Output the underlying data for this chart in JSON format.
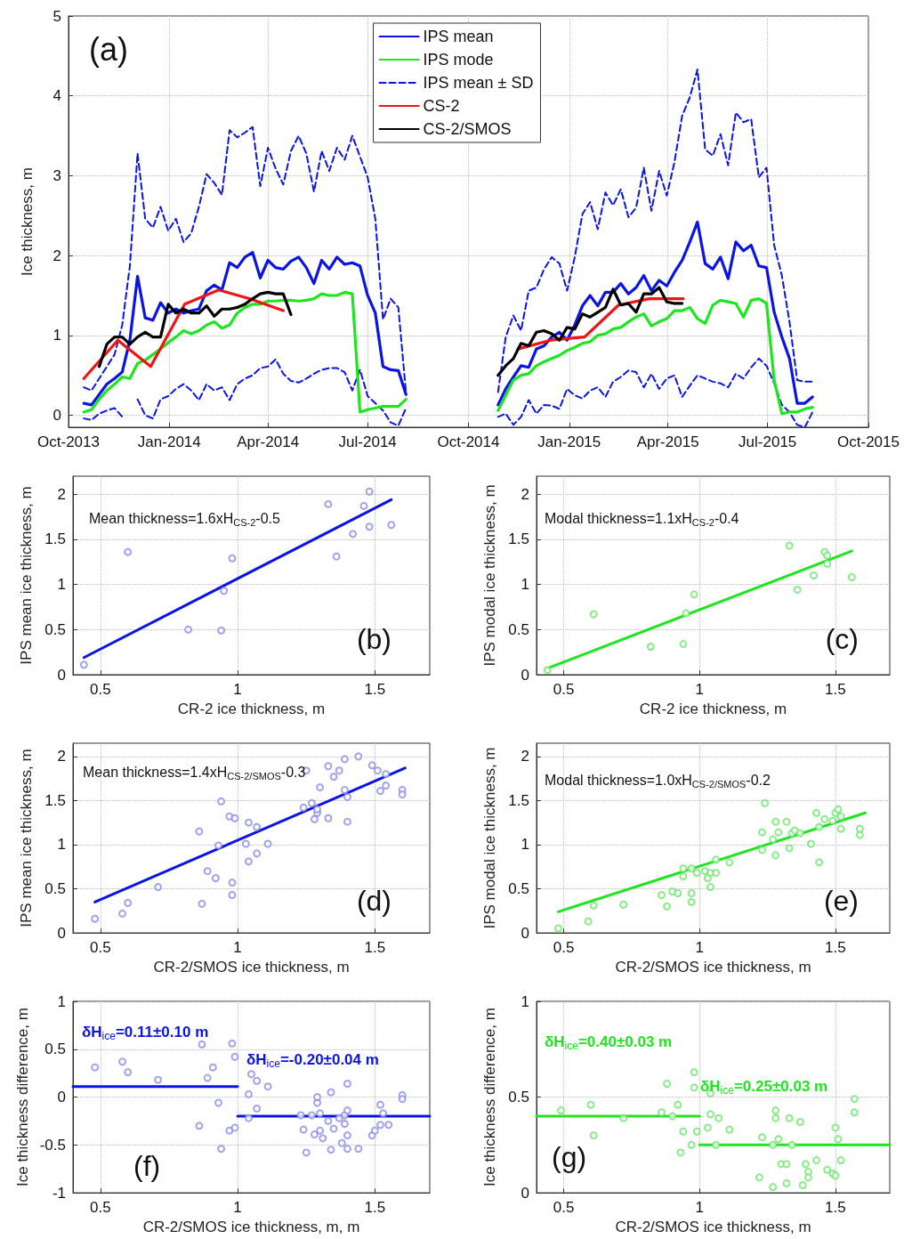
{
  "chart_data": [
    {
      "type": "line",
      "ylabel": "Ice thickness, m",
      "annotations": [
        "(a)"
      ],
      "xlim": [
        "2013-10-01",
        "2015-10-01"
      ],
      "xticks": [
        {
          "value": "2013-10-01",
          "label": "Oct-2013"
        },
        {
          "value": "2014-01-01",
          "label": "Jan-2014"
        },
        {
          "value": "2014-04-01",
          "label": "Apr-2014"
        },
        {
          "value": "2014-07-01",
          "label": "Jul-2014"
        },
        {
          "value": "2014-10-01",
          "label": "Oct-2014"
        },
        {
          "value": "2015-01-01",
          "label": "Jan-2015"
        },
        {
          "value": "2015-04-01",
          "label": "Apr-2015"
        },
        {
          "value": "2015-07-01",
          "label": "Jul-2015"
        },
        {
          "value": "2015-10-01",
          "label": "Oct-2015"
        }
      ],
      "ylim": [
        -0.15,
        5
      ],
      "yticks": [
        0,
        1,
        2,
        3,
        4,
        5
      ],
      "grid": true,
      "legend": "top",
      "marker": "none",
      "x": [
        "2013-10-15",
        "2013-10-22",
        "2013-10-29",
        "2013-11-05",
        "2013-11-12",
        "2013-11-19",
        "2013-11-26",
        "2013-12-03",
        "2013-12-10",
        "2013-12-17",
        "2013-12-24",
        "2013-12-31",
        "2014-01-07",
        "2014-01-14",
        "2014-01-21",
        "2014-01-28",
        "2014-02-04",
        "2014-02-11",
        "2014-02-18",
        "2014-02-25",
        "2014-03-04",
        "2014-03-11",
        "2014-03-18",
        "2014-03-25",
        "2014-04-01",
        "2014-04-08",
        "2014-04-15",
        "2014-04-22",
        "2014-04-29",
        "2014-05-06",
        "2014-05-13",
        "2014-05-20",
        "2014-05-27",
        "2014-06-03",
        "2014-06-10",
        "2014-06-17",
        "2014-06-24",
        "2014-07-01",
        "2014-07-08",
        "2014-07-15",
        "2014-07-22",
        "2014-07-29",
        "2014-08-05",
        "2014-09-15",
        "2014-10-28",
        "2014-11-04",
        "2014-11-11",
        "2014-11-18",
        "2014-11-25",
        "2014-12-02",
        "2014-12-09",
        "2014-12-16",
        "2014-12-23",
        "2014-12-30",
        "2015-01-06",
        "2015-01-13",
        "2015-01-20",
        "2015-01-27",
        "2015-02-03",
        "2015-02-10",
        "2015-02-17",
        "2015-02-24",
        "2015-03-03",
        "2015-03-10",
        "2015-03-17",
        "2015-03-24",
        "2015-03-31",
        "2015-04-07",
        "2015-04-14",
        "2015-04-21",
        "2015-04-28",
        "2015-05-05",
        "2015-05-12",
        "2015-05-19",
        "2015-05-26",
        "2015-06-02",
        "2015-06-09",
        "2015-06-16",
        "2015-06-23",
        "2015-06-30",
        "2015-07-07",
        "2015-07-14",
        "2015-07-21",
        "2015-07-28",
        "2015-08-04",
        "2015-08-11"
      ],
      "series": [
        {
          "name": "IPS mean",
          "color": "#0a14e6",
          "values": [
            0.15,
            0.13,
            0.26,
            0.39,
            0.46,
            0.54,
            0.94,
            1.74,
            1.22,
            1.19,
            1.41,
            1.28,
            1.33,
            1.28,
            1.31,
            1.33,
            1.56,
            1.63,
            1.57,
            1.91,
            1.85,
            1.98,
            2.04,
            1.72,
            1.94,
            1.85,
            1.83,
            1.93,
            1.98,
            1.85,
            1.65,
            1.94,
            1.83,
            1.98,
            1.89,
            1.91,
            1.87,
            1.5,
            1.28,
            0.61,
            0.57,
            0.56,
            0.26,
            null,
            0.13,
            0.33,
            0.48,
            0.62,
            0.6,
            0.83,
            0.87,
            0.98,
            1.04,
            0.94,
            1.13,
            1.37,
            1.5,
            1.37,
            1.54,
            1.54,
            1.65,
            1.52,
            1.6,
            1.75,
            1.56,
            1.69,
            1.62,
            1.79,
            1.94,
            2.17,
            2.42,
            1.9,
            1.83,
            1.98,
            1.71,
            2.17,
            2.06,
            2.13,
            1.87,
            1.85,
            1.29,
            0.98,
            0.71,
            0.15,
            0.15,
            0.23
          ]
        },
        {
          "name": "IPS mode",
          "color": "#1ee61e",
          "values": [
            0.04,
            0.07,
            0.2,
            0.31,
            0.39,
            0.48,
            0.46,
            0.65,
            0.69,
            0.76,
            0.83,
            0.91,
            0.98,
            1.06,
            1.02,
            1.06,
            1.13,
            1.17,
            1.09,
            1.13,
            1.28,
            1.35,
            1.39,
            1.39,
            1.43,
            1.43,
            1.44,
            1.44,
            1.43,
            1.44,
            1.46,
            1.52,
            1.5,
            1.5,
            1.54,
            1.52,
            0.04,
            0.07,
            0.09,
            0.11,
            0.11,
            0.11,
            0.2,
            null,
            0.06,
            0.25,
            0.44,
            0.5,
            0.52,
            0.62,
            0.67,
            0.71,
            0.75,
            0.81,
            0.85,
            0.9,
            0.92,
            1.0,
            1.02,
            1.08,
            1.1,
            1.17,
            1.23,
            1.27,
            1.12,
            1.17,
            1.21,
            1.31,
            1.31,
            1.35,
            1.21,
            1.15,
            1.38,
            1.44,
            1.42,
            1.4,
            1.23,
            1.44,
            1.46,
            1.4,
            0.44,
            0.02,
            0.04,
            0.04,
            0.08,
            0.1
          ]
        },
        {
          "name": "IPS mean ± SD",
          "color": "#0a14e6",
          "line_style": "dashed",
          "values": [
            0.35,
            0.31,
            0.46,
            0.61,
            0.76,
            1.13,
            1.87,
            3.28,
            2.46,
            2.35,
            2.61,
            2.31,
            2.46,
            2.17,
            2.28,
            2.61,
            3.02,
            2.91,
            2.76,
            3.57,
            3.48,
            3.54,
            3.61,
            2.87,
            3.35,
            3.09,
            2.89,
            3.31,
            3.5,
            3.28,
            2.8,
            3.31,
            3.06,
            3.35,
            3.2,
            3.5,
            3.24,
            2.98,
            2.46,
            1.2,
            1.46,
            1.35,
            0.28,
            null,
            0.29,
            0.98,
            1.25,
            1.06,
            1.56,
            1.6,
            1.83,
            1.98,
            1.9,
            1.56,
            1.98,
            2.52,
            2.67,
            2.33,
            2.79,
            2.63,
            2.83,
            2.48,
            2.6,
            3.1,
            2.56,
            3.06,
            2.75,
            3.17,
            3.75,
            3.98,
            4.33,
            3.33,
            3.25,
            3.52,
            3.13,
            3.79,
            3.67,
            3.71,
            2.98,
            3.1,
            2.13,
            1.75,
            1.17,
            0.44,
            0.42,
            0.42
          ]
        },
        {
          "color": "#0a14e6",
          "line_style": "dashed",
          "values": [
            -0.04,
            -0.06,
            0.02,
            0.06,
            0.09,
            -0.02,
            null,
            0.2,
            0,
            -0.04,
            0.2,
            0.24,
            0.33,
            0.39,
            0.31,
            0.19,
            0.39,
            0.31,
            0.35,
            0.19,
            0.39,
            0.46,
            0.5,
            0.59,
            0.61,
            0.7,
            0.52,
            0.43,
            0.41,
            0.46,
            0.52,
            0.57,
            0.59,
            0.59,
            0.54,
            0.31,
            0.57,
            0.24,
            0.15,
            0.06,
            -0.09,
            -0.13,
            0.09,
            null,
            -0.02,
            0.02,
            -0.12,
            -0.02,
            0.19,
            0.02,
            0.13,
            0.12,
            0.08,
            0.33,
            0.25,
            0.21,
            0.31,
            0.35,
            0.23,
            0.42,
            0.48,
            0.56,
            0.54,
            0.35,
            0.52,
            0.33,
            0.46,
            0.5,
            0.23,
            0.37,
            0.5,
            0.46,
            0.42,
            0.4,
            0.35,
            0.52,
            0.46,
            0.6,
            0.71,
            0.62,
            0.4,
            0.13,
            0.04,
            -0.12,
            -0.15,
            0.04
          ]
        },
        {
          "name": "CS-2",
          "color": "#f01414",
          "x": [
            "2013-10-15",
            "2013-11-15",
            "2013-12-15",
            "2014-01-15",
            "2014-02-15",
            "2014-03-15",
            "2014-04-15",
            "2014-09-15",
            "2014-11-15",
            "2014-12-15",
            "2015-01-15",
            "2015-02-15",
            "2015-03-15",
            "2015-04-15"
          ],
          "values": [
            0.46,
            0.94,
            0.61,
            1.39,
            1.57,
            1.46,
            1.31,
            null,
            0.83,
            0.94,
            0.98,
            1.38,
            1.46,
            1.46
          ]
        },
        {
          "name": "CS-2/SMOS",
          "color": "#000000",
          "values": [
            null,
            null,
            0.61,
            0.89,
            0.98,
            0.98,
            0.89,
            0.98,
            1.04,
            0.98,
            0.98,
            1.39,
            1.28,
            1.33,
            1.28,
            1.28,
            1.37,
            1.24,
            1.33,
            1.33,
            1.35,
            1.39,
            1.46,
            1.52,
            1.54,
            1.52,
            1.52,
            1.26,
            null,
            null,
            null,
            null,
            null,
            null,
            null,
            null,
            null,
            null,
            null,
            null,
            null,
            null,
            null,
            null,
            0.5,
            0.62,
            0.71,
            0.9,
            0.87,
            1.04,
            1.06,
            1.02,
            0.94,
            1.1,
            1.08,
            1.27,
            1.23,
            1.29,
            1.35,
            1.58,
            1.38,
            1.4,
            1.29,
            1.52,
            1.52,
            1.6,
            1.42,
            1.4,
            1.4,
            null,
            null,
            null,
            null,
            null,
            null,
            null,
            null,
            null,
            null,
            null,
            null,
            null,
            null,
            null,
            null,
            null
          ]
        }
      ]
    },
    {
      "type": "scatter",
      "xlabel": "CR-2 ice thickness, m",
      "ylabel": "IPS mean ice thickness, m",
      "annotations": [
        "Mean thickness=1.6xH$_{CS-2}$-0.5",
        "(b)"
      ],
      "xlim": [
        0.4,
        1.7
      ],
      "xticks": [
        0.5,
        1,
        1.5
      ],
      "ylim": [
        0,
        2.2
      ],
      "yticks": [
        0,
        0.5,
        1,
        1.5,
        2
      ],
      "grid": true,
      "series": [
        {
          "color": "#8c8ce6",
          "marker": "circle",
          "x": [
            0.44,
            0.6,
            0.82,
            0.95,
            0.94,
            0.98,
            1.33,
            1.36,
            1.42,
            1.46,
            1.48,
            1.48,
            1.56
          ],
          "values": [
            0.11,
            1.36,
            0.5,
            0.93,
            0.49,
            1.29,
            1.89,
            1.31,
            1.56,
            1.87,
            2.03,
            1.64,
            1.66
          ]
        },
        {
          "type": "line",
          "color": "#0a14e6",
          "x": [
            0.44,
            1.56
          ],
          "values": [
            0.19,
            1.94
          ]
        }
      ]
    },
    {
      "type": "scatter",
      "xlabel": "CR-2 ice thickness, m",
      "ylabel": "IPS modal ice thickness, m",
      "annotations": [
        "Modal thickness=1.1xH$_{CS-2}$-0.4",
        "(c)"
      ],
      "xlim": [
        0.4,
        1.7
      ],
      "xticks": [
        0.5,
        1,
        1.5
      ],
      "ylim": [
        0,
        2.2
      ],
      "yticks": [
        0,
        0.5,
        1,
        1.5,
        2
      ],
      "grid": true,
      "series": [
        {
          "color": "#6ee66e",
          "marker": "circle",
          "x": [
            0.44,
            0.61,
            0.82,
            0.94,
            0.95,
            0.98,
            1.33,
            1.36,
            1.42,
            1.46,
            1.47,
            1.47,
            1.56
          ],
          "values": [
            0.05,
            0.67,
            0.31,
            0.34,
            0.68,
            0.89,
            1.43,
            0.94,
            1.1,
            1.36,
            1.32,
            1.23,
            1.08
          ]
        },
        {
          "type": "line",
          "color": "#1ee61e",
          "x": [
            0.44,
            1.56
          ],
          "values": [
            0.07,
            1.37
          ]
        }
      ]
    },
    {
      "type": "scatter",
      "xlabel": "CR-2/SMOS ice thickness, m",
      "ylabel": "IPS mean ice thickness, m",
      "annotations": [
        "Mean thickness=1.4xH$_{CS-2/SMOS}$-0.3",
        "(d)"
      ],
      "xlim": [
        0.4,
        1.7
      ],
      "xticks": [
        0.5,
        1,
        1.5
      ],
      "ylim": [
        0,
        2.15
      ],
      "yticks": [
        0,
        0.5,
        1,
        1.5,
        2
      ],
      "grid": true,
      "series": [
        {
          "color": "#8c8ce6",
          "marker": "circle",
          "x": [
            0.48,
            0.58,
            0.6,
            0.71,
            0.86,
            0.87,
            0.89,
            0.92,
            0.93,
            0.94,
            0.97,
            0.98,
            0.98,
            0.99,
            1.03,
            1.04,
            1.04,
            1.07,
            1.07,
            1.11,
            1.24,
            1.25,
            1.27,
            1.28,
            1.29,
            1.29,
            1.3,
            1.33,
            1.33,
            1.35,
            1.37,
            1.39,
            1.39,
            1.4,
            1.4,
            1.44,
            1.49,
            1.51,
            1.52,
            1.54,
            1.54,
            1.6,
            1.6
          ],
          "values": [
            0.16,
            0.22,
            0.34,
            0.52,
            1.15,
            0.33,
            0.7,
            0.62,
            0.99,
            1.49,
            1.32,
            0.43,
            0.57,
            1.3,
            1.01,
            1.25,
            0.81,
            1.2,
            0.9,
            1.01,
            1.42,
            1.84,
            1.47,
            1.29,
            1.36,
            1.4,
            1.65,
            1.89,
            1.3,
            1.77,
            1.84,
            1.62,
            1.97,
            1.26,
            1.54,
            2.0,
            1.9,
            1.84,
            1.61,
            1.8,
            1.67,
            1.62,
            1.57
          ]
        },
        {
          "type": "line",
          "color": "#0a14e6",
          "x": [
            0.48,
            1.61
          ],
          "values": [
            0.35,
            1.87
          ]
        }
      ]
    },
    {
      "type": "scatter",
      "xlabel": "CR-2/SMOS ice thickness, m",
      "ylabel": "IPS modal ice thickness, m",
      "annotations": [
        "Modal thickness=1.0xH$_{CS-2/SMOS}$-0.2",
        "(e)"
      ],
      "xlim": [
        0.4,
        1.7
      ],
      "xticks": [
        0.5,
        1,
        1.5
      ],
      "ylim": [
        0,
        2.15
      ],
      "yticks": [
        0,
        0.5,
        1,
        1.5,
        2
      ],
      "grid": true,
      "series": [
        {
          "color": "#6ee66e",
          "marker": "circle",
          "x": [
            0.48,
            0.59,
            0.61,
            0.72,
            0.86,
            0.88,
            0.9,
            0.92,
            0.94,
            0.94,
            0.97,
            0.97,
            0.97,
            0.99,
            1.02,
            1.03,
            1.04,
            1.04,
            1.06,
            1.06,
            1.11,
            1.23,
            1.24,
            1.23,
            1.27,
            1.28,
            1.28,
            1.29,
            1.32,
            1.33,
            1.34,
            1.35,
            1.37,
            1.41,
            1.43,
            1.44,
            1.44,
            1.46,
            1.49,
            1.5,
            1.51,
            1.52,
            1.52,
            1.59,
            1.59
          ],
          "values": [
            0.05,
            0.13,
            0.31,
            0.32,
            0.43,
            0.3,
            0.47,
            0.45,
            0.73,
            0.64,
            0.73,
            0.35,
            0.45,
            0.68,
            0.7,
            0.62,
            0.52,
            0.68,
            0.83,
            0.68,
            0.8,
            0.94,
            1.47,
            1.14,
            1.06,
            0.88,
            1.26,
            1.14,
            1.26,
            0.96,
            1.13,
            1.16,
            1.13,
            1.01,
            1.36,
            0.8,
            1.2,
            1.29,
            1.27,
            1.36,
            1.4,
            1.18,
            1.32,
            1.11,
            1.18
          ]
        },
        {
          "type": "line",
          "color": "#1ee61e",
          "x": [
            0.48,
            1.61
          ],
          "values": [
            0.24,
            1.36
          ]
        }
      ]
    },
    {
      "type": "scatter",
      "xlabel": "CR-2/SMOS ice thickness, m, m",
      "ylabel": "Ice thickness difference, m",
      "annotations": [
        "δH$_{ice}$=0.11±0.10 m",
        "δH$_{ice}$=-0.20±0.04 m",
        "(f)"
      ],
      "xlim": [
        0.4,
        1.7
      ],
      "xticks": [
        0.5,
        1,
        1.5
      ],
      "ylim": [
        -1,
        1
      ],
      "yticks": [
        -1,
        -0.5,
        0,
        0.5,
        1
      ],
      "grid": true,
      "series": [
        {
          "color": "#8c8ce6",
          "marker": "circle",
          "x": [
            0.48,
            0.58,
            0.6,
            0.71,
            0.86,
            0.87,
            0.89,
            0.91,
            0.93,
            0.94,
            0.97,
            0.98,
            0.99,
            0.99,
            1.04,
            1.04,
            1.05,
            1.07,
            1.07,
            1.11,
            1.23,
            1.24,
            1.25,
            1.27,
            1.28,
            1.29,
            1.29,
            1.3,
            1.3,
            1.31,
            1.33,
            1.34,
            1.34,
            1.35,
            1.37,
            1.38,
            1.39,
            1.39,
            1.4,
            1.4,
            1.4,
            1.4,
            1.44,
            1.49,
            1.5,
            1.52,
            1.52,
            1.53,
            1.55,
            1.6,
            1.6
          ],
          "values": [
            0.31,
            0.37,
            0.26,
            0.18,
            -0.3,
            0.55,
            0.2,
            0.31,
            -0.06,
            -0.54,
            -0.35,
            0.56,
            0.42,
            -0.32,
            0.03,
            -0.22,
            0.24,
            0.17,
            -0.12,
            0.11,
            -0.19,
            -0.34,
            -0.58,
            -0.19,
            -0.39,
            -0.06,
            0.0,
            -0.17,
            -0.35,
            -0.43,
            -0.25,
            -0.55,
            0.05,
            -0.33,
            -0.22,
            -0.48,
            -0.19,
            -0.28,
            -0.54,
            0.14,
            -0.4,
            -0.14,
            -0.54,
            -0.4,
            -0.35,
            -0.08,
            -0.29,
            -0.17,
            -0.29,
            0.02,
            -0.02
          ]
        },
        {
          "type": "line",
          "color": "#0a14e6",
          "x": [
            0.4,
            1
          ],
          "values": [
            0.11,
            0.11
          ]
        },
        {
          "type": "line",
          "color": "#0a14e6",
          "x": [
            1,
            1.7
          ],
          "values": [
            -0.2,
            -0.2
          ]
        }
      ]
    },
    {
      "type": "scatter",
      "xlabel": "CR-2/SMOS ice thickness, m",
      "ylabel": "Ice thickness difference, m",
      "annotations": [
        "δH$_{ice}$=0.40±0.03 m",
        "δH$_{ice}$=0.25±0.03 m",
        "(g)"
      ],
      "xlim": [
        0.4,
        1.7
      ],
      "xticks": [
        0.5,
        1,
        1.5
      ],
      "ylim": [
        0,
        1
      ],
      "yticks": [
        0,
        0.5,
        1
      ],
      "grid": true,
      "series": [
        {
          "color": "#6ee66e",
          "marker": "circle",
          "x": [
            0.49,
            0.6,
            0.61,
            0.72,
            0.86,
            0.88,
            0.9,
            0.92,
            0.93,
            0.94,
            0.97,
            0.98,
            0.98,
            0.99,
            1.03,
            1.04,
            1.04,
            1.06,
            1.07,
            1.11,
            1.22,
            1.23,
            1.27,
            1.27,
            1.28,
            1.28,
            1.29,
            1.3,
            1.32,
            1.32,
            1.33,
            1.34,
            1.37,
            1.38,
            1.39,
            1.4,
            1.4,
            1.43,
            1.47,
            1.49,
            1.5,
            1.5,
            1.51,
            1.52,
            1.57,
            1.57
          ],
          "values": [
            0.43,
            0.46,
            0.3,
            0.39,
            0.42,
            0.57,
            0.4,
            0.46,
            0.21,
            0.32,
            0.25,
            0.63,
            0.55,
            0.32,
            0.34,
            0.41,
            0.52,
            0.25,
            0.39,
            0.33,
            0.08,
            0.29,
            0.03,
            0.25,
            0.43,
            0.39,
            0.28,
            0.15,
            0.05,
            0.15,
            0.39,
            0.25,
            0.37,
            0.04,
            0.15,
            0.11,
            0.08,
            0.17,
            0.12,
            0.1,
            0.09,
            0.34,
            0.28,
            0.17,
            0.49,
            0.42
          ]
        },
        {
          "type": "line",
          "color": "#1ee61e",
          "x": [
            0.4,
            1
          ],
          "values": [
            0.4,
            0.4
          ]
        },
        {
          "type": "line",
          "color": "#1ee61e",
          "x": [
            1,
            1.7
          ],
          "values": [
            0.25,
            0.25
          ]
        }
      ]
    }
  ]
}
